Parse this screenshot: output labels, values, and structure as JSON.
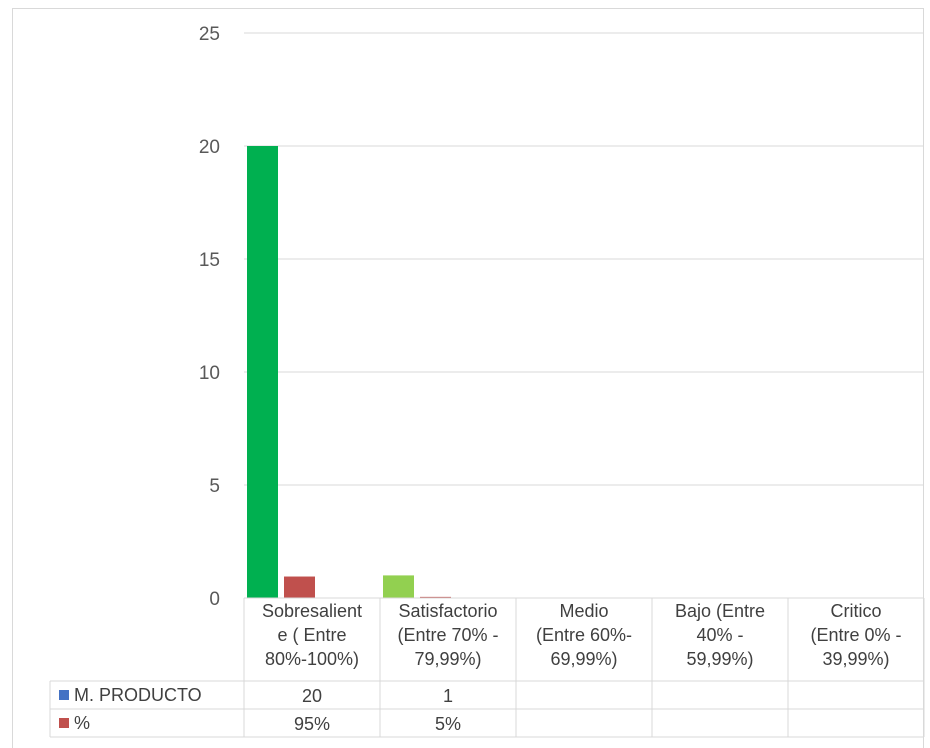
{
  "chart_data": {
    "type": "bar",
    "ylim": [
      0,
      25
    ],
    "yticks": [
      0,
      5,
      10,
      15,
      20,
      25
    ],
    "grid": true,
    "legend": "data-table",
    "categories": [
      [
        "Sobresalient",
        "e  ( Entre",
        "80%-100%)"
      ],
      [
        "Satisfactorio",
        "(Entre 70% -",
        "79,99%)"
      ],
      [
        "Medio",
        "(Entre 60%-",
        "69,99%)"
      ],
      [
        "Bajo (Entre",
        "40% -",
        "59,99%)"
      ],
      [
        "Critico",
        "(Entre 0% -",
        "39,99%)"
      ]
    ],
    "series": [
      {
        "name": "M. PRODUCTO",
        "legend_color": "#4472c4",
        "values": [
          20,
          1,
          null,
          null,
          null
        ],
        "bar_colors": [
          "#00b050",
          "#92d050",
          "#ffc000",
          "#ff6600",
          "#ff0000"
        ],
        "table_labels": [
          "20",
          "1",
          "",
          "",
          ""
        ]
      },
      {
        "name": "%",
        "legend_color": "#c0504d",
        "values": [
          0.95,
          0.05,
          null,
          null,
          null
        ],
        "bar_colors": [
          "#c0504d",
          "#c0504d",
          "#c0504d",
          "#c0504d",
          "#c0504d"
        ],
        "table_labels": [
          "95%",
          "5%",
          "",
          "",
          ""
        ]
      }
    ]
  }
}
